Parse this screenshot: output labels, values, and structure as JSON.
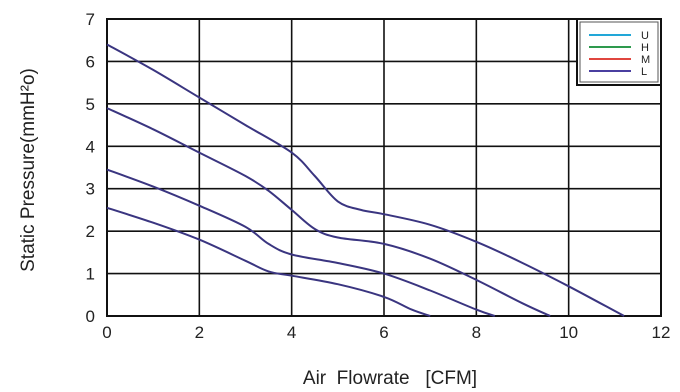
{
  "chart_data": {
    "type": "line",
    "title": "",
    "xlabel": "Air  Flowrate   [CFM]",
    "ylabel": "Static Pressure(mmH²o)",
    "xlim": [
      0,
      12
    ],
    "ylim": [
      0,
      7
    ],
    "xticks": [
      0,
      2,
      4,
      6,
      8,
      10,
      12
    ],
    "yticks": [
      0,
      1,
      2,
      3,
      4,
      5,
      6,
      7
    ],
    "grid": true,
    "legend_position": "top-right",
    "legend": [
      {
        "name": "U",
        "color": "#22a7d8"
      },
      {
        "name": "H",
        "color": "#2e9a4e"
      },
      {
        "name": "M",
        "color": "#e0463f"
      },
      {
        "name": "L",
        "color": "#4a3fa0"
      }
    ],
    "curve_color": "#3a3580",
    "series": [
      {
        "points": [
          [
            0,
            6.4
          ],
          [
            1,
            5.8
          ],
          [
            2,
            5.15
          ],
          [
            3,
            4.5
          ],
          [
            4,
            3.85
          ],
          [
            4.5,
            3.3
          ],
          [
            5,
            2.7
          ],
          [
            5.5,
            2.5
          ],
          [
            6,
            2.4
          ],
          [
            7,
            2.15
          ],
          [
            8,
            1.75
          ],
          [
            9,
            1.25
          ],
          [
            10,
            0.7
          ],
          [
            11.2,
            0
          ]
        ]
      },
      {
        "points": [
          [
            0,
            4.9
          ],
          [
            1,
            4.4
          ],
          [
            2,
            3.85
          ],
          [
            3,
            3.3
          ],
          [
            3.5,
            2.95
          ],
          [
            4,
            2.5
          ],
          [
            4.5,
            2.05
          ],
          [
            5,
            1.85
          ],
          [
            6,
            1.7
          ],
          [
            7,
            1.35
          ],
          [
            8,
            0.85
          ],
          [
            9,
            0.3
          ],
          [
            9.6,
            0
          ]
        ]
      },
      {
        "points": [
          [
            0,
            3.45
          ],
          [
            1,
            3.05
          ],
          [
            2,
            2.6
          ],
          [
            3,
            2.1
          ],
          [
            3.5,
            1.7
          ],
          [
            4,
            1.45
          ],
          [
            5,
            1.25
          ],
          [
            6,
            1.0
          ],
          [
            7,
            0.6
          ],
          [
            8,
            0.15
          ],
          [
            8.4,
            0
          ]
        ]
      },
      {
        "points": [
          [
            0,
            2.55
          ],
          [
            1,
            2.2
          ],
          [
            2,
            1.8
          ],
          [
            3,
            1.3
          ],
          [
            3.5,
            1.05
          ],
          [
            4,
            0.95
          ],
          [
            5,
            0.75
          ],
          [
            6,
            0.45
          ],
          [
            6.6,
            0.15
          ],
          [
            7,
            0
          ]
        ]
      }
    ]
  }
}
